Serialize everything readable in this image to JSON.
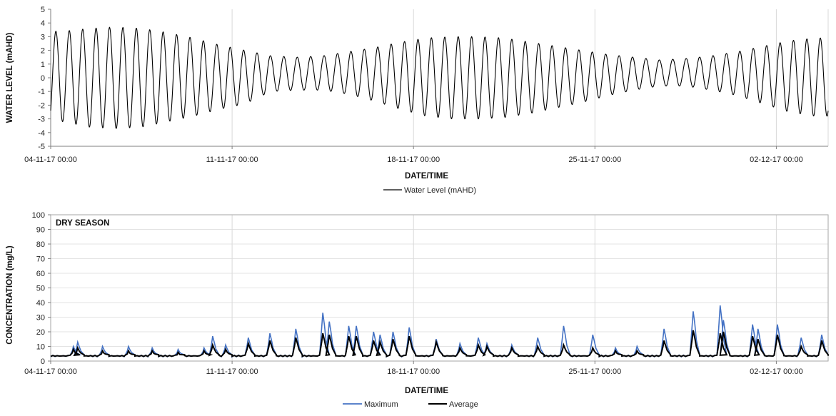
{
  "chart_data": [
    {
      "type": "line",
      "xlabel": "DATE/TIME",
      "ylabel": "WATER LEVEL (mAHD)",
      "ylim": [
        -5,
        5
      ],
      "yticks": [
        -5,
        -4,
        -3,
        -2,
        -1,
        0,
        1,
        2,
        3,
        4,
        5
      ],
      "xlim": [
        "04-11-17 00:00",
        "04-12-17 00:00"
      ],
      "xticks": [
        "04-11-17 00:00",
        "11-11-17 00:00",
        "18-11-17 00:00",
        "25-11-17 00:00",
        "02-12-17 00:00"
      ],
      "grid": "vertical",
      "legend_position": "bottom",
      "series": [
        {
          "name": "Water Level (mAHD)",
          "color": "#000000",
          "description": "semi-diurnal tide; amplitude envelope of high/low waters by day",
          "high_water_by_day": [
            3.4,
            3.6,
            3.7,
            3.6,
            3.3,
            2.9,
            2.4,
            2.0,
            1.6,
            1.5,
            1.6,
            1.9,
            2.2,
            2.6,
            2.9,
            3.0,
            3.0,
            2.9,
            2.6,
            2.3,
            2.0,
            1.7,
            1.5,
            1.3,
            1.4,
            1.6,
            1.9,
            2.3,
            2.7,
            2.9
          ],
          "low_water_by_day": [
            -3.2,
            -3.6,
            -3.7,
            -3.6,
            -3.2,
            -2.8,
            -2.3,
            -1.9,
            -1.0,
            -0.9,
            -0.9,
            -1.2,
            -1.7,
            -2.3,
            -2.8,
            -3.0,
            -3.0,
            -2.9,
            -2.6,
            -2.2,
            -1.8,
            -1.3,
            -0.9,
            -0.6,
            -0.6,
            -0.9,
            -1.3,
            -1.9,
            -2.5,
            -2.8
          ]
        }
      ]
    },
    {
      "type": "line",
      "title": "DRY SEASON",
      "xlabel": "DATE/TIME",
      "ylabel": "CONCENTRATION (mg/L)",
      "ylim": [
        0,
        100
      ],
      "yticks": [
        0,
        10,
        20,
        30,
        40,
        50,
        60,
        70,
        80,
        90,
        100
      ],
      "xlim": [
        "04-11-17 00:00",
        "04-12-17 00:00"
      ],
      "xticks": [
        "04-11-17 00:00",
        "11-11-17 00:00",
        "18-11-17 00:00",
        "25-11-17 00:00",
        "02-12-17 00:00"
      ],
      "grid": "vertical",
      "legend_position": "bottom",
      "baseline": 3.5,
      "series": [
        {
          "name": "Maximum",
          "color": "#4472C4",
          "peaks": [
            {
              "x": "04-11-17 21:00",
              "y": 10
            },
            {
              "x": "05-11-17 01:00",
              "y": 13
            },
            {
              "x": "06-11-17 00:00",
              "y": 10
            },
            {
              "x": "07-11-17 00:00",
              "y": 10
            },
            {
              "x": "07-11-17 22:00",
              "y": 9
            },
            {
              "x": "08-11-17 22:00",
              "y": 8
            },
            {
              "x": "09-11-17 22:00",
              "y": 9
            },
            {
              "x": "10-11-17 06:00",
              "y": 17
            },
            {
              "x": "10-11-17 18:00",
              "y": 11
            },
            {
              "x": "11-11-17 15:00",
              "y": 16
            },
            {
              "x": "12-11-17 11:00",
              "y": 19
            },
            {
              "x": "13-11-17 11:00",
              "y": 22
            },
            {
              "x": "14-11-17 12:00",
              "y": 33
            },
            {
              "x": "14-11-17 18:00",
              "y": 27
            },
            {
              "x": "15-11-17 12:00",
              "y": 24
            },
            {
              "x": "15-11-17 19:00",
              "y": 24
            },
            {
              "x": "16-11-17 11:00",
              "y": 20
            },
            {
              "x": "16-11-17 17:00",
              "y": 18
            },
            {
              "x": "17-11-17 05:00",
              "y": 20
            },
            {
              "x": "17-11-17 20:00",
              "y": 23
            },
            {
              "x": "18-11-17 21:00",
              "y": 15
            },
            {
              "x": "19-11-17 19:00",
              "y": 12
            },
            {
              "x": "20-11-17 12:00",
              "y": 16
            },
            {
              "x": "20-11-17 20:00",
              "y": 12
            },
            {
              "x": "21-11-17 19:00",
              "y": 11
            },
            {
              "x": "22-11-17 19:00",
              "y": 16
            },
            {
              "x": "23-11-17 19:00",
              "y": 24
            },
            {
              "x": "24-11-17 22:00",
              "y": 18
            },
            {
              "x": "25-11-17 19:00",
              "y": 9
            },
            {
              "x": "26-11-17 15:00",
              "y": 10
            },
            {
              "x": "27-11-17 16:00",
              "y": 22
            },
            {
              "x": "28-11-17 19:00",
              "y": 34
            },
            {
              "x": "29-11-17 20:00",
              "y": 38
            },
            {
              "x": "29-11-17 23:00",
              "y": 28
            },
            {
              "x": "01-12-17 02:00",
              "y": 25
            },
            {
              "x": "01-12-17 07:00",
              "y": 22
            },
            {
              "x": "02-12-17 01:00",
              "y": 25
            },
            {
              "x": "02-12-17 23:00",
              "y": 16
            },
            {
              "x": "03-12-17 18:00",
              "y": 18
            }
          ]
        },
        {
          "name": "Average",
          "color": "#000000",
          "peaks": [
            {
              "x": "04-11-17 21:00",
              "y": 8
            },
            {
              "x": "05-11-17 01:00",
              "y": 9
            },
            {
              "x": "06-11-17 00:00",
              "y": 7
            },
            {
              "x": "07-11-17 00:00",
              "y": 7
            },
            {
              "x": "07-11-17 22:00",
              "y": 7
            },
            {
              "x": "08-11-17 22:00",
              "y": 6
            },
            {
              "x": "09-11-17 22:00",
              "y": 7
            },
            {
              "x": "10-11-17 06:00",
              "y": 11
            },
            {
              "x": "10-11-17 18:00",
              "y": 8
            },
            {
              "x": "11-11-17 15:00",
              "y": 12
            },
            {
              "x": "12-11-17 11:00",
              "y": 14
            },
            {
              "x": "13-11-17 11:00",
              "y": 16
            },
            {
              "x": "14-11-17 12:00",
              "y": 19
            },
            {
              "x": "14-11-17 18:00",
              "y": 18
            },
            {
              "x": "15-11-17 12:00",
              "y": 17
            },
            {
              "x": "15-11-17 19:00",
              "y": 17
            },
            {
              "x": "16-11-17 11:00",
              "y": 14
            },
            {
              "x": "16-11-17 17:00",
              "y": 13
            },
            {
              "x": "17-11-17 05:00",
              "y": 15
            },
            {
              "x": "17-11-17 20:00",
              "y": 17
            },
            {
              "x": "18-11-17 21:00",
              "y": 13
            },
            {
              "x": "19-11-17 19:00",
              "y": 9
            },
            {
              "x": "20-11-17 12:00",
              "y": 11
            },
            {
              "x": "20-11-17 20:00",
              "y": 10
            },
            {
              "x": "21-11-17 19:00",
              "y": 9
            },
            {
              "x": "22-11-17 19:00",
              "y": 10
            },
            {
              "x": "23-11-17 19:00",
              "y": 11
            },
            {
              "x": "24-11-17 22:00",
              "y": 9
            },
            {
              "x": "25-11-17 19:00",
              "y": 7
            },
            {
              "x": "26-11-17 15:00",
              "y": 7
            },
            {
              "x": "27-11-17 16:00",
              "y": 14
            },
            {
              "x": "28-11-17 19:00",
              "y": 21
            },
            {
              "x": "29-11-17 20:00",
              "y": 19
            },
            {
              "x": "29-11-17 23:00",
              "y": 20
            },
            {
              "x": "01-12-17 02:00",
              "y": 17
            },
            {
              "x": "01-12-17 07:00",
              "y": 15
            },
            {
              "x": "02-12-17 01:00",
              "y": 18
            },
            {
              "x": "02-12-17 23:00",
              "y": 10
            },
            {
              "x": "03-12-17 18:00",
              "y": 14
            }
          ]
        }
      ]
    }
  ]
}
